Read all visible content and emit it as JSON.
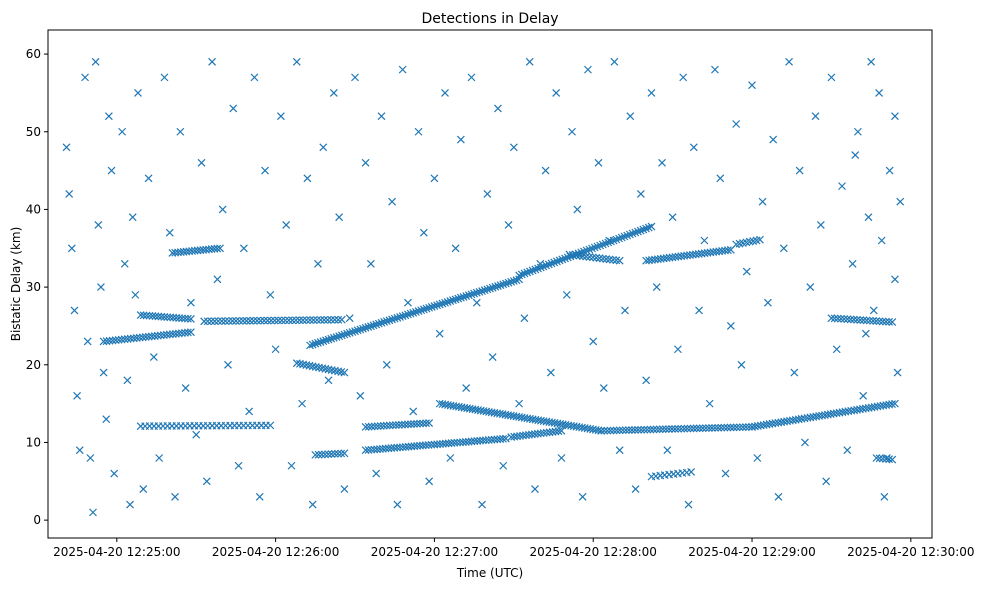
{
  "chart_data": {
    "type": "scatter",
    "title": "Detections in Delay",
    "xlabel": "Time (UTC)",
    "ylabel": "Bistatic Delay (km)",
    "marker": "x",
    "color": "#1f77b4",
    "x_unit": "seconds after 2025-04-20 12:25:00",
    "xlim": [
      -26,
      308
    ],
    "ylim": [
      -2.3,
      63.1
    ],
    "grid": false,
    "x_ticks": [
      {
        "value": 0,
        "label": "2025-04-20 12:25:00"
      },
      {
        "value": 60,
        "label": "2025-04-20 12:26:00"
      },
      {
        "value": 120,
        "label": "2025-04-20 12:27:00"
      },
      {
        "value": 180,
        "label": "2025-04-20 12:28:00"
      },
      {
        "value": 240,
        "label": "2025-04-20 12:29:00"
      },
      {
        "value": 300,
        "label": "2025-04-20 12:30:00"
      }
    ],
    "y_ticks": [
      0,
      10,
      20,
      30,
      40,
      50,
      60
    ],
    "tracks": [
      {
        "t0": -5,
        "t1": 28,
        "km0": 23.0,
        "km1": 24.2,
        "n": 30
      },
      {
        "t0": 9,
        "t1": 28,
        "km0": 26.4,
        "km1": 25.9,
        "n": 18
      },
      {
        "t0": 33,
        "t1": 85,
        "km0": 25.6,
        "km1": 25.8,
        "n": 40
      },
      {
        "t0": 21,
        "t1": 39,
        "km0": 34.4,
        "km1": 35.0,
        "n": 18
      },
      {
        "t0": 9,
        "t1": 58,
        "km0": 12.1,
        "km1": 12.2,
        "n": 30
      },
      {
        "t0": 68,
        "t1": 86,
        "km0": 20.2,
        "km1": 19.0,
        "n": 16
      },
      {
        "t0": 73,
        "t1": 152,
        "km0": 22.5,
        "km1": 31.0,
        "n": 80
      },
      {
        "t0": 152,
        "t1": 202,
        "km0": 31.5,
        "km1": 37.8,
        "n": 50
      },
      {
        "t0": 171,
        "t1": 190,
        "km0": 34.2,
        "km1": 33.4,
        "n": 16
      },
      {
        "t0": 200,
        "t1": 232,
        "km0": 33.4,
        "km1": 34.8,
        "n": 30
      },
      {
        "t0": 234,
        "t1": 243,
        "km0": 35.5,
        "km1": 36.1,
        "n": 8
      },
      {
        "t0": 270,
        "t1": 293,
        "km0": 26.0,
        "km1": 25.5,
        "n": 20
      },
      {
        "t0": 75,
        "t1": 86,
        "km0": 8.4,
        "km1": 8.6,
        "n": 10
      },
      {
        "t0": 94,
        "t1": 147,
        "km0": 9.0,
        "km1": 10.5,
        "n": 50
      },
      {
        "t0": 149,
        "t1": 168,
        "km0": 10.7,
        "km1": 11.5,
        "n": 18
      },
      {
        "t0": 94,
        "t1": 118,
        "km0": 12.0,
        "km1": 12.5,
        "n": 22
      },
      {
        "t0": 122,
        "t1": 183,
        "km0": 15.0,
        "km1": 11.5,
        "n": 60
      },
      {
        "t0": 183,
        "t1": 240,
        "km0": 11.5,
        "km1": 12.0,
        "n": 50
      },
      {
        "t0": 240,
        "t1": 294,
        "km0": 12.0,
        "km1": 15.0,
        "n": 50
      },
      {
        "t0": 202,
        "t1": 217,
        "km0": 5.6,
        "km1": 6.2,
        "n": 10
      },
      {
        "t0": 287,
        "t1": 293,
        "km0": 8.0,
        "km1": 7.8,
        "n": 6
      }
    ],
    "noise_points": [
      [
        -19,
        48
      ],
      [
        -18,
        42
      ],
      [
        -17,
        35
      ],
      [
        -16,
        27
      ],
      [
        -15,
        16
      ],
      [
        -14,
        9
      ],
      [
        -12,
        57
      ],
      [
        -11,
        23
      ],
      [
        -10,
        8
      ],
      [
        -9,
        1
      ],
      [
        -8,
        59
      ],
      [
        -7,
        38
      ],
      [
        -6,
        30
      ],
      [
        -5,
        19
      ],
      [
        -4,
        13
      ],
      [
        -3,
        52
      ],
      [
        -2,
        45
      ],
      [
        -1,
        6
      ],
      [
        2,
        50
      ],
      [
        3,
        33
      ],
      [
        4,
        18
      ],
      [
        5,
        2
      ],
      [
        6,
        39
      ],
      [
        7,
        29
      ],
      [
        8,
        55
      ],
      [
        10,
        4
      ],
      [
        12,
        44
      ],
      [
        14,
        21
      ],
      [
        16,
        8
      ],
      [
        18,
        57
      ],
      [
        20,
        37
      ],
      [
        22,
        3
      ],
      [
        24,
        50
      ],
      [
        26,
        17
      ],
      [
        28,
        28
      ],
      [
        30,
        11
      ],
      [
        32,
        46
      ],
      [
        34,
        5
      ],
      [
        36,
        59
      ],
      [
        38,
        31
      ],
      [
        40,
        40
      ],
      [
        42,
        20
      ],
      [
        44,
        53
      ],
      [
        46,
        7
      ],
      [
        48,
        35
      ],
      [
        50,
        14
      ],
      [
        52,
        57
      ],
      [
        54,
        3
      ],
      [
        56,
        45
      ],
      [
        58,
        29
      ],
      [
        60,
        22
      ],
      [
        62,
        52
      ],
      [
        64,
        38
      ],
      [
        66,
        7
      ],
      [
        68,
        59
      ],
      [
        70,
        15
      ],
      [
        72,
        44
      ],
      [
        74,
        2
      ],
      [
        76,
        33
      ],
      [
        78,
        48
      ],
      [
        80,
        18
      ],
      [
        82,
        55
      ],
      [
        84,
        39
      ],
      [
        86,
        4
      ],
      [
        88,
        26
      ],
      [
        90,
        57
      ],
      [
        92,
        16
      ],
      [
        94,
        46
      ],
      [
        96,
        33
      ],
      [
        98,
        6
      ],
      [
        100,
        52
      ],
      [
        102,
        20
      ],
      [
        104,
        41
      ],
      [
        106,
        2
      ],
      [
        108,
        58
      ],
      [
        110,
        28
      ],
      [
        112,
        14
      ],
      [
        114,
        50
      ],
      [
        116,
        37
      ],
      [
        118,
        5
      ],
      [
        120,
        44
      ],
      [
        122,
        24
      ],
      [
        124,
        55
      ],
      [
        126,
        8
      ],
      [
        128,
        35
      ],
      [
        130,
        49
      ],
      [
        132,
        17
      ],
      [
        134,
        57
      ],
      [
        136,
        28
      ],
      [
        138,
        2
      ],
      [
        140,
        42
      ],
      [
        142,
        21
      ],
      [
        144,
        53
      ],
      [
        146,
        7
      ],
      [
        148,
        38
      ],
      [
        150,
        48
      ],
      [
        152,
        15
      ],
      [
        154,
        26
      ],
      [
        156,
        59
      ],
      [
        158,
        4
      ],
      [
        160,
        33
      ],
      [
        162,
        45
      ],
      [
        164,
        19
      ],
      [
        166,
        55
      ],
      [
        168,
        8
      ],
      [
        170,
        29
      ],
      [
        172,
        50
      ],
      [
        174,
        40
      ],
      [
        176,
        3
      ],
      [
        178,
        58
      ],
      [
        180,
        23
      ],
      [
        182,
        46
      ],
      [
        184,
        17
      ],
      [
        186,
        36
      ],
      [
        188,
        59
      ],
      [
        190,
        9
      ],
      [
        192,
        27
      ],
      [
        194,
        52
      ],
      [
        196,
        4
      ],
      [
        198,
        42
      ],
      [
        200,
        18
      ],
      [
        202,
        55
      ],
      [
        204,
        30
      ],
      [
        206,
        46
      ],
      [
        208,
        9
      ],
      [
        210,
        39
      ],
      [
        212,
        22
      ],
      [
        214,
        57
      ],
      [
        216,
        2
      ],
      [
        218,
        48
      ],
      [
        220,
        27
      ],
      [
        222,
        36
      ],
      [
        224,
        15
      ],
      [
        226,
        58
      ],
      [
        228,
        44
      ],
      [
        230,
        6
      ],
      [
        232,
        25
      ],
      [
        234,
        51
      ],
      [
        236,
        20
      ],
      [
        238,
        32
      ],
      [
        240,
        56
      ],
      [
        242,
        8
      ],
      [
        244,
        41
      ],
      [
        246,
        28
      ],
      [
        248,
        49
      ],
      [
        250,
        3
      ],
      [
        252,
        35
      ],
      [
        254,
        59
      ],
      [
        256,
        19
      ],
      [
        258,
        45
      ],
      [
        260,
        10
      ],
      [
        262,
        30
      ],
      [
        264,
        52
      ],
      [
        266,
        38
      ],
      [
        268,
        5
      ],
      [
        270,
        57
      ],
      [
        272,
        22
      ],
      [
        274,
        43
      ],
      [
        276,
        9
      ],
      [
        278,
        33
      ],
      [
        280,
        50
      ],
      [
        282,
        16
      ],
      [
        284,
        39
      ],
      [
        286,
        27
      ],
      [
        288,
        55
      ],
      [
        290,
        3
      ],
      [
        292,
        45
      ],
      [
        294,
        31
      ],
      [
        295,
        19
      ],
      [
        296,
        41
      ],
      [
        294,
        52
      ],
      [
        291,
        8
      ],
      [
        289,
        36
      ],
      [
        285,
        59
      ],
      [
        283,
        24
      ],
      [
        279,
        47
      ]
    ]
  }
}
